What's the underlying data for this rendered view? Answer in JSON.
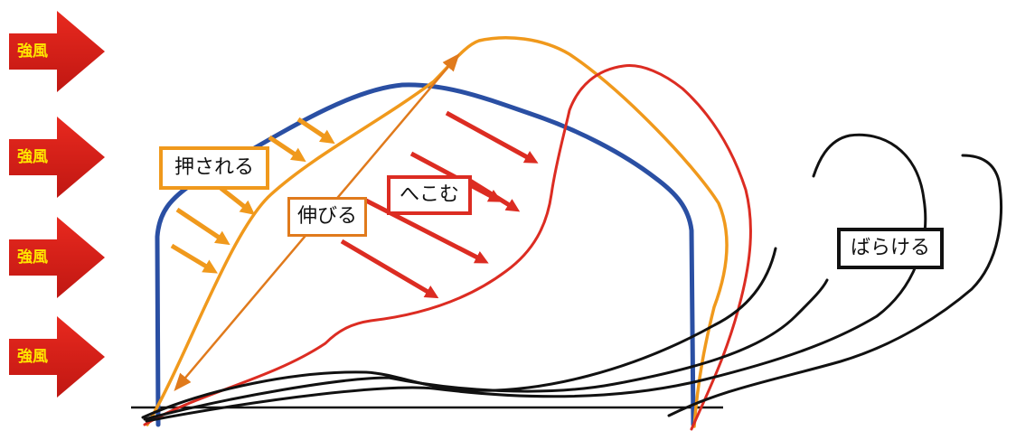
{
  "wind": {
    "label": "強風",
    "arrows": [
      {
        "label": "強風"
      },
      {
        "label": "強風"
      },
      {
        "label": "強風"
      },
      {
        "label": "強風"
      }
    ]
  },
  "labels": {
    "pushed": "押される",
    "stretch": "伸びる",
    "dent": "へこむ",
    "scatter": "ばらける"
  },
  "colors": {
    "original_tent": "#2a4fa3",
    "stretched_frame": "#f0991c",
    "dented_frame": "#dc2c22",
    "scattered_frame": "#111111",
    "wind_arrow": "#d91e1e",
    "wind_text": "#ffe600",
    "ground": "#111111"
  }
}
